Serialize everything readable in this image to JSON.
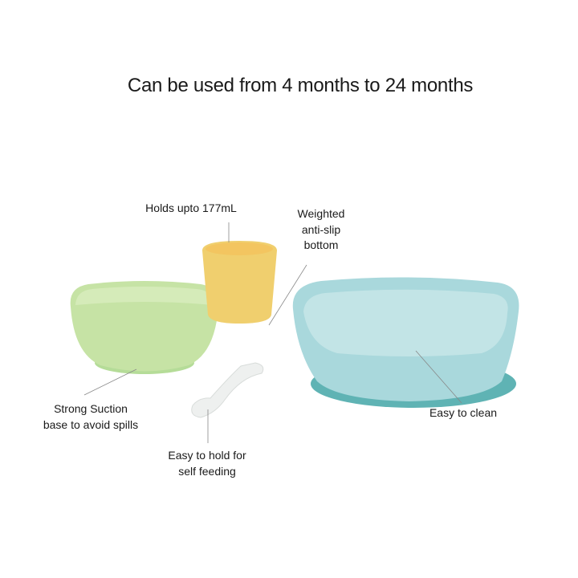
{
  "title": "Can be used from 4 months to 24 months",
  "labels": {
    "cup": "Holds upto 177mL",
    "weighted": [
      "Weighted",
      "anti-slip",
      "bottom"
    ],
    "suction": [
      "Strong Suction",
      "base to avoid spills"
    ],
    "spoon": [
      "Easy to hold for",
      "self feeding"
    ],
    "plate": "Easy to clean"
  },
  "colors": {
    "bowl": "#c6e3a5",
    "cup": "#f0cf6e",
    "plate": "#a9d8dc",
    "plate_base": "#5fb3b4",
    "spoon": "#eef0ef"
  }
}
